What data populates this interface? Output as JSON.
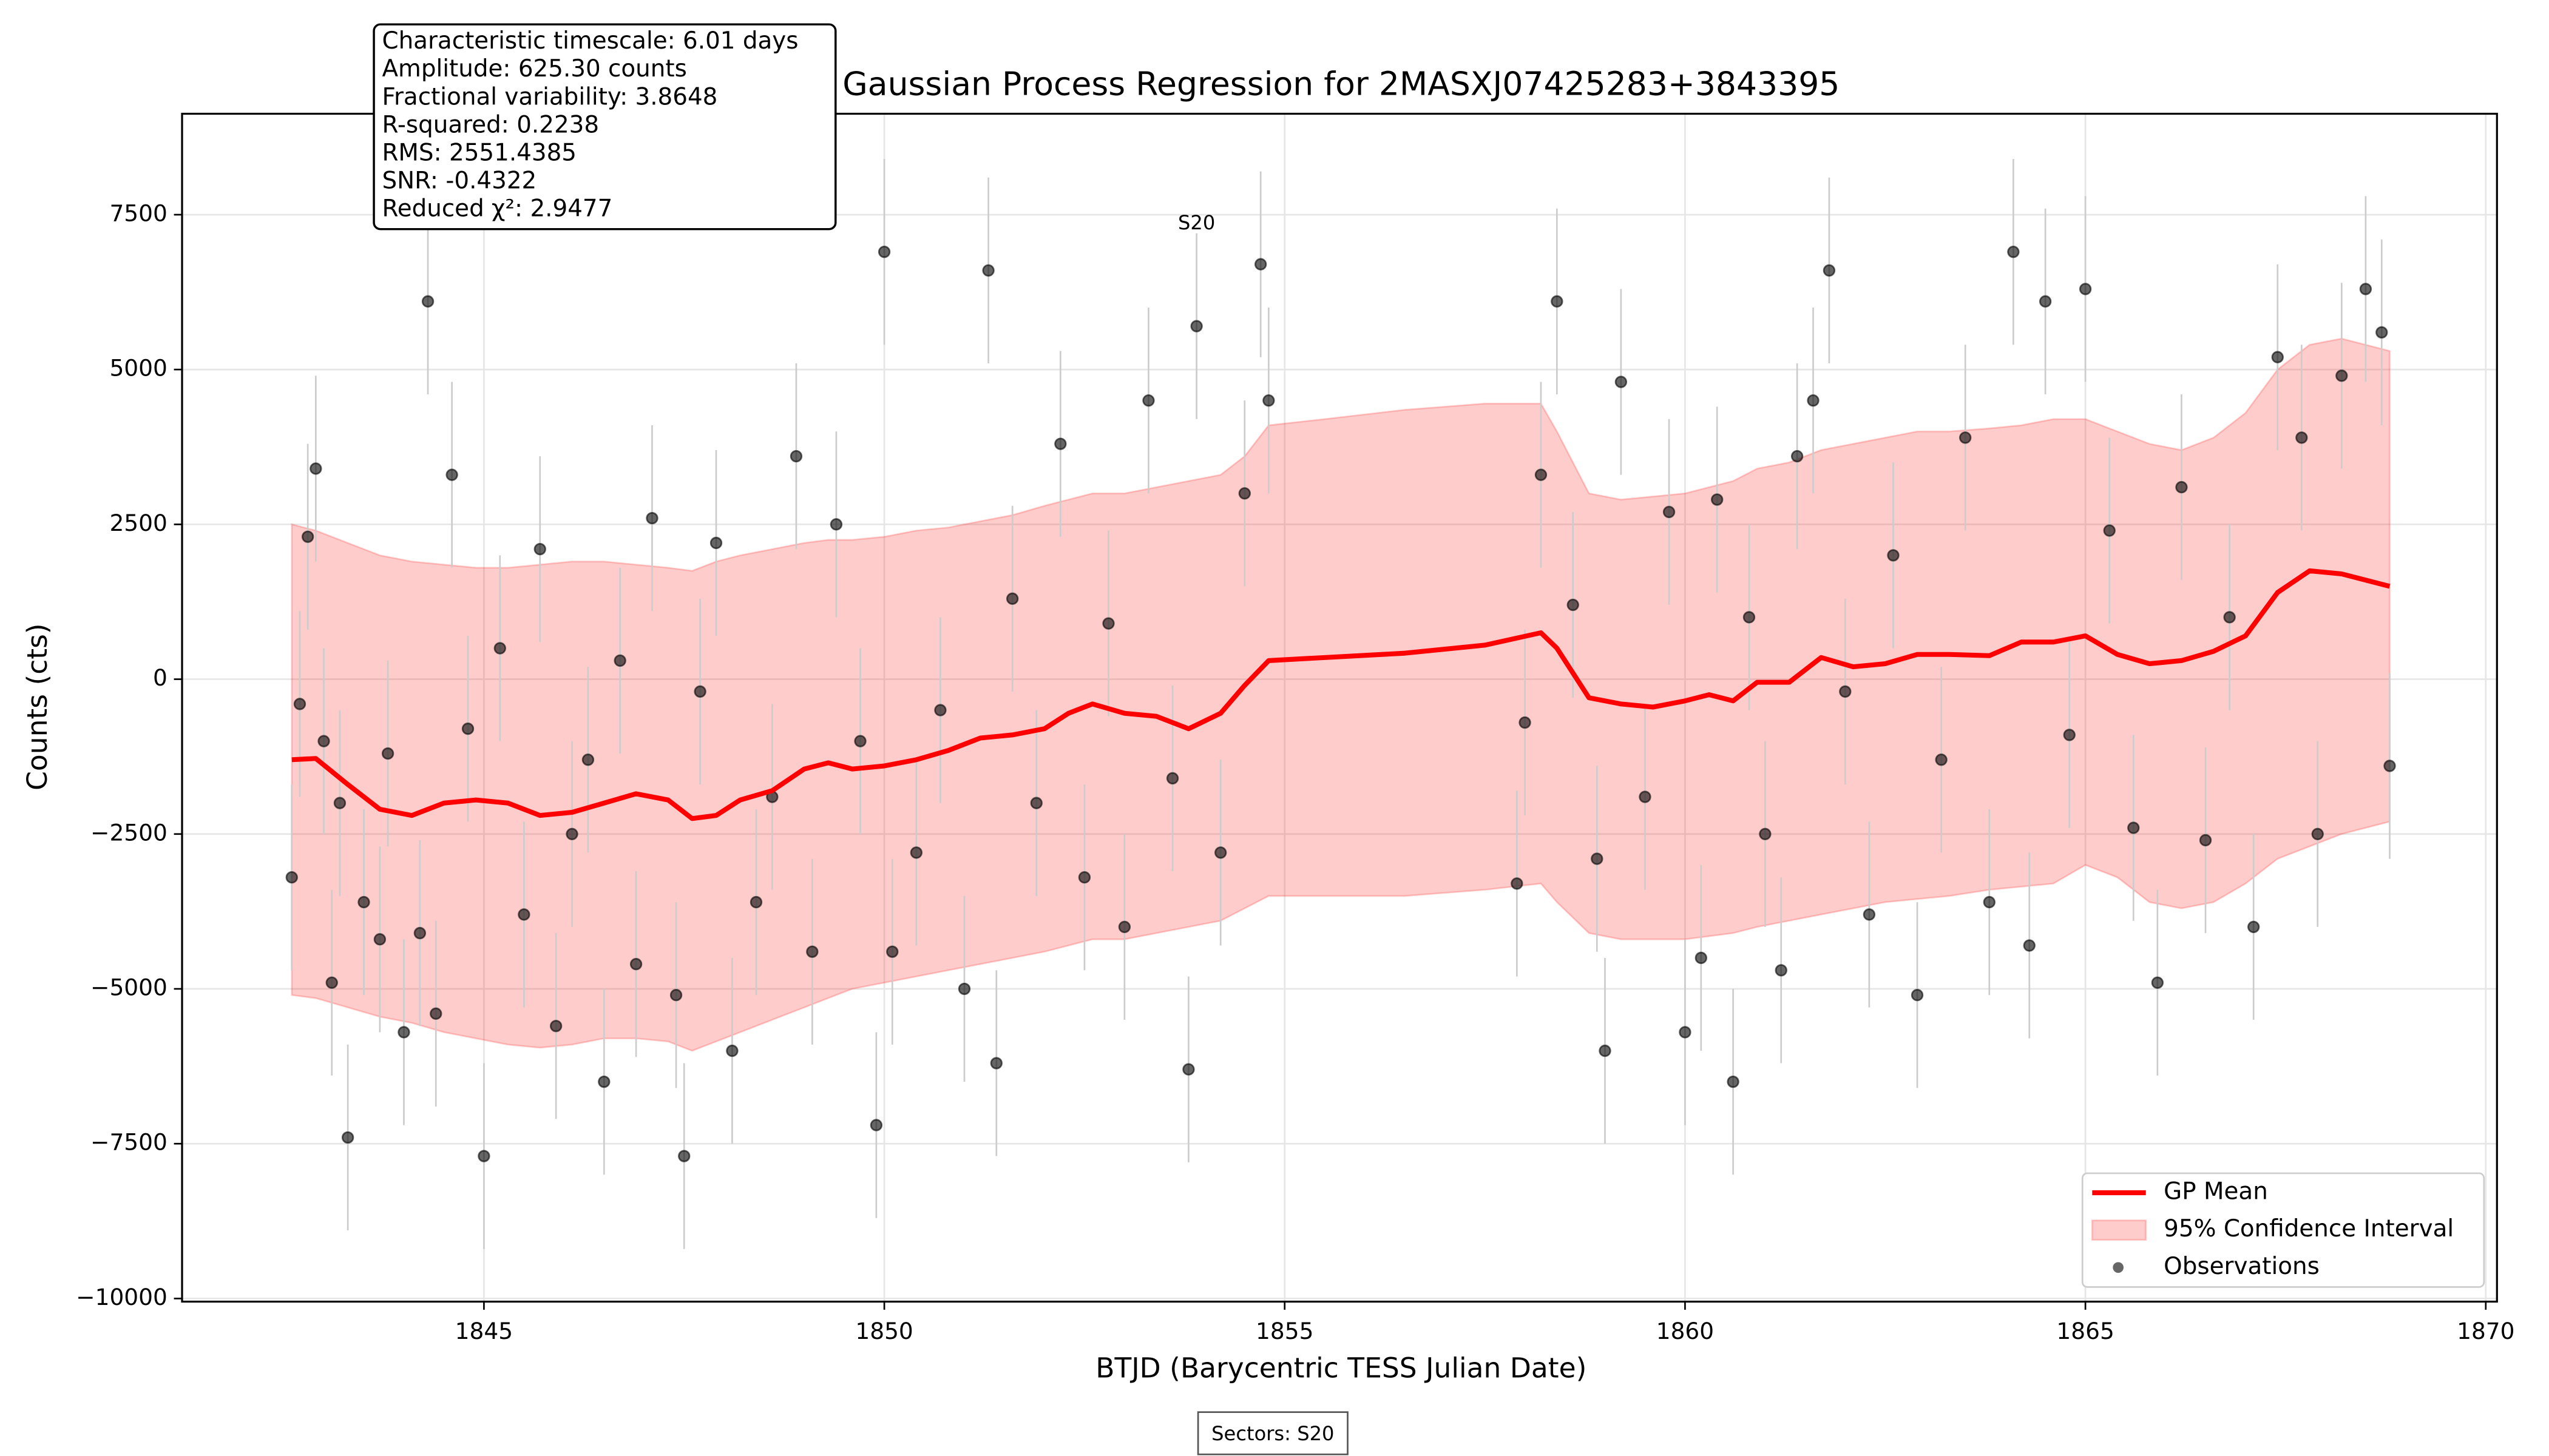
{
  "chart_data": {
    "type": "gp-regression",
    "title": "Gaussian Process Regression for 2MASXJ07425283+3843395",
    "x_label": "BTJD (Barycentric TESS Julian Date)",
    "y_label": "Counts (cts)",
    "xlim": [
      1841.23,
      1870.14
    ],
    "ylim": [
      -10050,
      9130
    ],
    "xticks": [
      1845,
      1850,
      1855,
      1860,
      1865,
      1870
    ],
    "yticks": [
      {
        "value": -10000,
        "label": "−10000"
      },
      {
        "value": -7500,
        "label": "−7500"
      },
      {
        "value": -5000,
        "label": "−5000"
      },
      {
        "value": -2500,
        "label": "−2500"
      },
      0,
      2500,
      5000,
      7500
    ],
    "grid": true,
    "legend": "lower right",
    "stats": [
      "Characteristic timescale: 6.01 days",
      "Amplitude: 625.30 counts",
      "Fractional variability: 3.8648",
      "R-squared: 0.2238",
      "RMS: 2551.4385",
      "SNR: -0.4322",
      "Reduced χ²: 2.9477"
    ],
    "sector_label": {
      "text": "S20",
      "x": 1853.9,
      "y": 7350
    },
    "footer": "Sectors: S20",
    "series": [
      {
        "name": "GP Mean",
        "type": "line",
        "color": "#ff0000",
        "x": [
          1842.6,
          1842.9,
          1843.3,
          1843.7,
          1844.1,
          1844.5,
          1844.9,
          1845.3,
          1845.7,
          1846.1,
          1846.5,
          1846.9,
          1847.3,
          1847.6,
          1847.9,
          1848.2,
          1848.6,
          1849.0,
          1849.3,
          1849.6,
          1850.0,
          1850.4,
          1850.8,
          1851.2,
          1851.6,
          1852.0,
          1852.3,
          1852.6,
          1853.0,
          1853.4,
          1853.8,
          1854.2,
          1854.5,
          1854.8,
          1855.5,
          1856.5,
          1857.5,
          1858.2,
          1858.4,
          1858.8,
          1859.2,
          1859.6,
          1860.0,
          1860.3,
          1860.6,
          1860.9,
          1861.3,
          1861.7,
          1862.1,
          1862.5,
          1862.9,
          1863.3,
          1863.8,
          1864.2,
          1864.6,
          1865.0,
          1865.4,
          1865.8,
          1866.2,
          1866.6,
          1867.0,
          1867.4,
          1867.8,
          1868.2,
          1868.8
        ],
        "y": [
          -1300,
          -1280,
          -1700,
          -2100,
          -2200,
          -2000,
          -1950,
          -2000,
          -2200,
          -2150,
          -2000,
          -1850,
          -1950,
          -2250,
          -2200,
          -1950,
          -1800,
          -1450,
          -1350,
          -1450,
          -1400,
          -1300,
          -1150,
          -950,
          -900,
          -800,
          -550,
          -400,
          -550,
          -600,
          -800,
          -550,
          -100,
          300,
          350,
          420,
          550,
          750,
          500,
          -300,
          -400,
          -450,
          -350,
          -250,
          -350,
          -50,
          -50,
          350,
          200,
          250,
          400,
          400,
          380,
          600,
          600,
          700,
          400,
          250,
          300,
          450,
          700,
          1400,
          1750,
          1700,
          1500
        ]
      },
      {
        "name": "95% Confidence Interval",
        "type": "band",
        "color": "#ff0000",
        "alpha": 0.2,
        "x": [
          1842.6,
          1842.9,
          1843.3,
          1843.7,
          1844.1,
          1844.5,
          1844.9,
          1845.3,
          1845.7,
          1846.1,
          1846.5,
          1846.9,
          1847.3,
          1847.6,
          1847.9,
          1848.2,
          1848.6,
          1849.0,
          1849.3,
          1849.6,
          1850.0,
          1850.4,
          1850.8,
          1851.2,
          1851.6,
          1852.0,
          1852.3,
          1852.6,
          1853.0,
          1853.4,
          1853.8,
          1854.2,
          1854.5,
          1854.8,
          1855.5,
          1856.5,
          1857.5,
          1858.2,
          1858.4,
          1858.8,
          1859.2,
          1859.6,
          1860.0,
          1860.3,
          1860.6,
          1860.9,
          1861.3,
          1861.7,
          1862.1,
          1862.5,
          1862.9,
          1863.3,
          1863.8,
          1864.2,
          1864.6,
          1865.0,
          1865.4,
          1865.8,
          1866.2,
          1866.6,
          1867.0,
          1867.4,
          1867.8,
          1868.2,
          1868.8
        ],
        "upper": [
          2500,
          2400,
          2200,
          2000,
          1900,
          1850,
          1800,
          1800,
          1850,
          1900,
          1900,
          1850,
          1800,
          1750,
          1900,
          2000,
          2100,
          2200,
          2250,
          2250,
          2300,
          2400,
          2450,
          2550,
          2650,
          2800,
          2900,
          3000,
          3000,
          3100,
          3200,
          3300,
          3600,
          4100,
          4200,
          4350,
          4450,
          4450,
          4000,
          3000,
          2900,
          2950,
          3000,
          3100,
          3200,
          3400,
          3500,
          3700,
          3800,
          3900,
          4000,
          4000,
          4050,
          4100,
          4200,
          4200,
          4000,
          3800,
          3700,
          3900,
          4300,
          5000,
          5400,
          5500,
          5300
        ],
        "lower": [
          -5100,
          -5150,
          -5300,
          -5450,
          -5550,
          -5700,
          -5800,
          -5900,
          -5950,
          -5900,
          -5800,
          -5800,
          -5850,
          -6000,
          -5850,
          -5700,
          -5500,
          -5300,
          -5150,
          -5000,
          -4900,
          -4800,
          -4700,
          -4600,
          -4500,
          -4400,
          -4300,
          -4200,
          -4200,
          -4100,
          -4000,
          -3900,
          -3700,
          -3500,
          -3500,
          -3500,
          -3400,
          -3300,
          -3600,
          -4100,
          -4200,
          -4200,
          -4200,
          -4150,
          -4100,
          -4000,
          -3900,
          -3800,
          -3700,
          -3600,
          -3550,
          -3500,
          -3400,
          -3350,
          -3300,
          -3000,
          -3200,
          -3600,
          -3700,
          -3600,
          -3300,
          -2900,
          -2700,
          -2500,
          -2300
        ]
      },
      {
        "name": "Observations",
        "type": "scatter",
        "color": "#000000",
        "alpha": 0.6,
        "error_color": "#cccccc",
        "x": [
          1842.6,
          1842.7,
          1842.8,
          1842.9,
          1843.0,
          1843.1,
          1843.2,
          1843.3,
          1843.5,
          1843.7,
          1843.8,
          1844.0,
          1844.2,
          1844.3,
          1844.4,
          1844.6,
          1844.8,
          1845.0,
          1845.2,
          1845.5,
          1845.7,
          1845.9,
          1846.1,
          1846.3,
          1846.5,
          1846.7,
          1846.9,
          1847.1,
          1847.4,
          1847.5,
          1847.7,
          1847.9,
          1848.1,
          1848.4,
          1848.6,
          1848.9,
          1849.1,
          1849.4,
          1849.7,
          1849.9,
          1850.0,
          1850.1,
          1850.4,
          1850.7,
          1851.0,
          1851.3,
          1851.4,
          1851.6,
          1851.9,
          1852.2,
          1852.5,
          1852.8,
          1853.0,
          1853.3,
          1853.6,
          1853.8,
          1853.9,
          1854.2,
          1854.5,
          1854.7,
          1854.8,
          1857.9,
          1858.0,
          1858.2,
          1858.4,
          1858.6,
          1858.9,
          1859.0,
          1859.2,
          1859.5,
          1859.8,
          1860.0,
          1860.2,
          1860.4,
          1860.6,
          1860.8,
          1861.0,
          1861.2,
          1861.4,
          1861.6,
          1861.8,
          1862.0,
          1862.3,
          1862.6,
          1862.9,
          1863.2,
          1863.5,
          1863.8,
          1864.1,
          1864.3,
          1864.5,
          1864.8,
          1865.0,
          1865.3,
          1865.6,
          1865.9,
          1866.2,
          1866.5,
          1866.8,
          1867.1,
          1867.4,
          1867.7,
          1867.9,
          1868.2,
          1868.5,
          1868.7,
          1868.8
        ],
        "y": [
          -3200,
          -400,
          2300,
          3400,
          -1000,
          -4900,
          -2000,
          -7400,
          -3600,
          -4200,
          -1200,
          -5700,
          -4100,
          6100,
          -5400,
          3300,
          -800,
          -7700,
          500,
          -3800,
          2100,
          -5600,
          -2500,
          -1300,
          -6500,
          300,
          -4600,
          2600,
          -5100,
          -7700,
          -200,
          2200,
          -6000,
          -3600,
          -1900,
          3600,
          -4400,
          2500,
          -1000,
          -7200,
          6900,
          -4400,
          -2800,
          -500,
          -5000,
          6600,
          -6200,
          1300,
          -2000,
          3800,
          -3200,
          900,
          -4000,
          4500,
          -1600,
          -6300,
          5700,
          -2800,
          3000,
          6700,
          4500,
          -3300,
          -700,
          3300,
          6100,
          1200,
          -2900,
          -6000,
          4800,
          -1900,
          2700,
          -5700,
          -4500,
          2900,
          -6500,
          1000,
          -2500,
          -4700,
          3600,
          4500,
          6600,
          -200,
          -3800,
          2000,
          -5100,
          -1300,
          3900,
          -3600,
          6900,
          -4300,
          6100,
          -900,
          6300,
          2400,
          -2400,
          -4900,
          3100,
          -2600,
          1000,
          -4000,
          5200,
          3900,
          -2500,
          4900,
          6300,
          5600,
          -1400
        ],
        "yerr": 1500
      }
    ]
  }
}
